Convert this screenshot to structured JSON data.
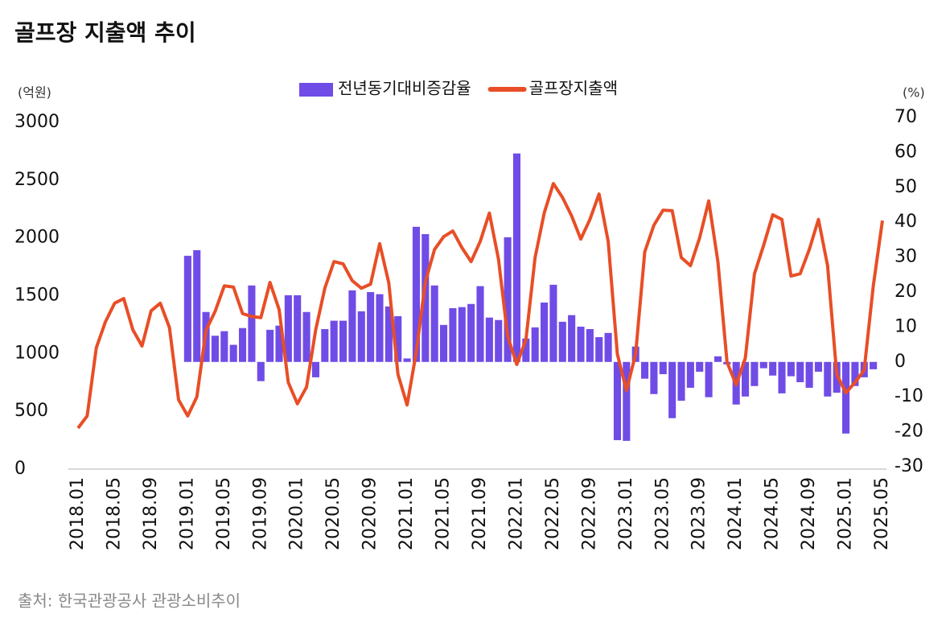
{
  "chart_data": {
    "type": "bar-line",
    "title": "골프장 지출액 추이",
    "source": "출처: 한국관광공사 관광소비추이",
    "ylabel": "(억원)",
    "y2label": "(%)",
    "categories": [
      "2018.01",
      null,
      null,
      null,
      "2018.05",
      null,
      null,
      null,
      "2018.09",
      null,
      null,
      null,
      "2019.01",
      null,
      null,
      null,
      "2019.05",
      null,
      null,
      null,
      "2019.09",
      null,
      null,
      null,
      "2020.01",
      null,
      null,
      null,
      "2020.05",
      null,
      null,
      null,
      "2020.09",
      null,
      null,
      null,
      "2021.01",
      null,
      null,
      null,
      "2021.05",
      null,
      null,
      null,
      "2021.09",
      null,
      null,
      null,
      "2022.01",
      null,
      null,
      null,
      "2022.05",
      null,
      null,
      null,
      "2022.09",
      null,
      null,
      null,
      "2023.01",
      null,
      null,
      null,
      "2023.05",
      null,
      null,
      null,
      "2023.09",
      null,
      null,
      null,
      "2024.01",
      null,
      null,
      null,
      "2024.05",
      null,
      null,
      null,
      "2024.09",
      null,
      null,
      null,
      "2025.01",
      null,
      null,
      null,
      "2025.05"
    ],
    "series": [
      {
        "name": "전년동기대비증감율",
        "type": "bar",
        "axis": "y2",
        "color": "#704ce6",
        "values": [
          null,
          null,
          null,
          null,
          null,
          null,
          null,
          null,
          null,
          null,
          null,
          null,
          30.4,
          32,
          14.3,
          7.5,
          8.8,
          4.9,
          9.7,
          21.9,
          -5.5,
          9.2,
          10.4,
          19.1,
          19.1,
          14.3,
          -4.4,
          9.4,
          11.8,
          11.8,
          20.5,
          14.5,
          20,
          19.4,
          15.9,
          13.1,
          1,
          38.7,
          36.6,
          21.9,
          10.6,
          15.4,
          15.7,
          16.6,
          21.7,
          12.7,
          12,
          35.7,
          59.7,
          6.7,
          9.9,
          17,
          22.1,
          11.5,
          13.4,
          10.1,
          9.4,
          7.1,
          8.3,
          -22.4,
          -22.6,
          4.4,
          -4.8,
          -9.2,
          -3.5,
          -16.1,
          -11.1,
          -7.4,
          -2.8,
          -10.1,
          1.6,
          -0.7,
          -12.2,
          -9.9,
          -6.9,
          -1.8,
          -3.9,
          -9,
          -4.1,
          -5.8,
          -7.4,
          -2.8,
          -9.9,
          -8.8,
          -20.5,
          -6.9,
          -4.4,
          -2.1,
          null
        ]
      },
      {
        "name": "골프장지출액",
        "type": "line",
        "axis": "y",
        "color": "#e84e26",
        "values": [
          355,
          460,
          1050,
          1275,
          1435,
          1475,
          1205,
          1065,
          1370,
          1435,
          1225,
          600,
          460,
          625,
          1200,
          1365,
          1585,
          1575,
          1345,
          1320,
          1310,
          1615,
          1380,
          750,
          565,
          710,
          1205,
          1565,
          1795,
          1775,
          1630,
          1565,
          1600,
          1950,
          1610,
          820,
          555,
          1010,
          1620,
          1900,
          2010,
          2060,
          1915,
          1795,
          1970,
          2215,
          1815,
          1150,
          905,
          1120,
          1830,
          2215,
          2470,
          2350,
          2190,
          1990,
          2160,
          2380,
          1970,
          995,
          680,
          995,
          1880,
          2110,
          2240,
          2235,
          1830,
          1760,
          2000,
          2320,
          1795,
          925,
          730,
          960,
          1690,
          1935,
          2200,
          2160,
          1670,
          1690,
          1900,
          2160,
          1760,
          820,
          660,
          750,
          855,
          1585,
          2150
        ]
      }
    ],
    "ylim": [
      0,
      3000
    ],
    "yticks": [
      0,
      500,
      1000,
      1500,
      2000,
      2500,
      3000
    ],
    "y2lim": [
      -30,
      70
    ],
    "y2ticks": [
      -30,
      -20,
      -10,
      0,
      10,
      20,
      30,
      40,
      50,
      60,
      70
    ],
    "legend": "top"
  }
}
